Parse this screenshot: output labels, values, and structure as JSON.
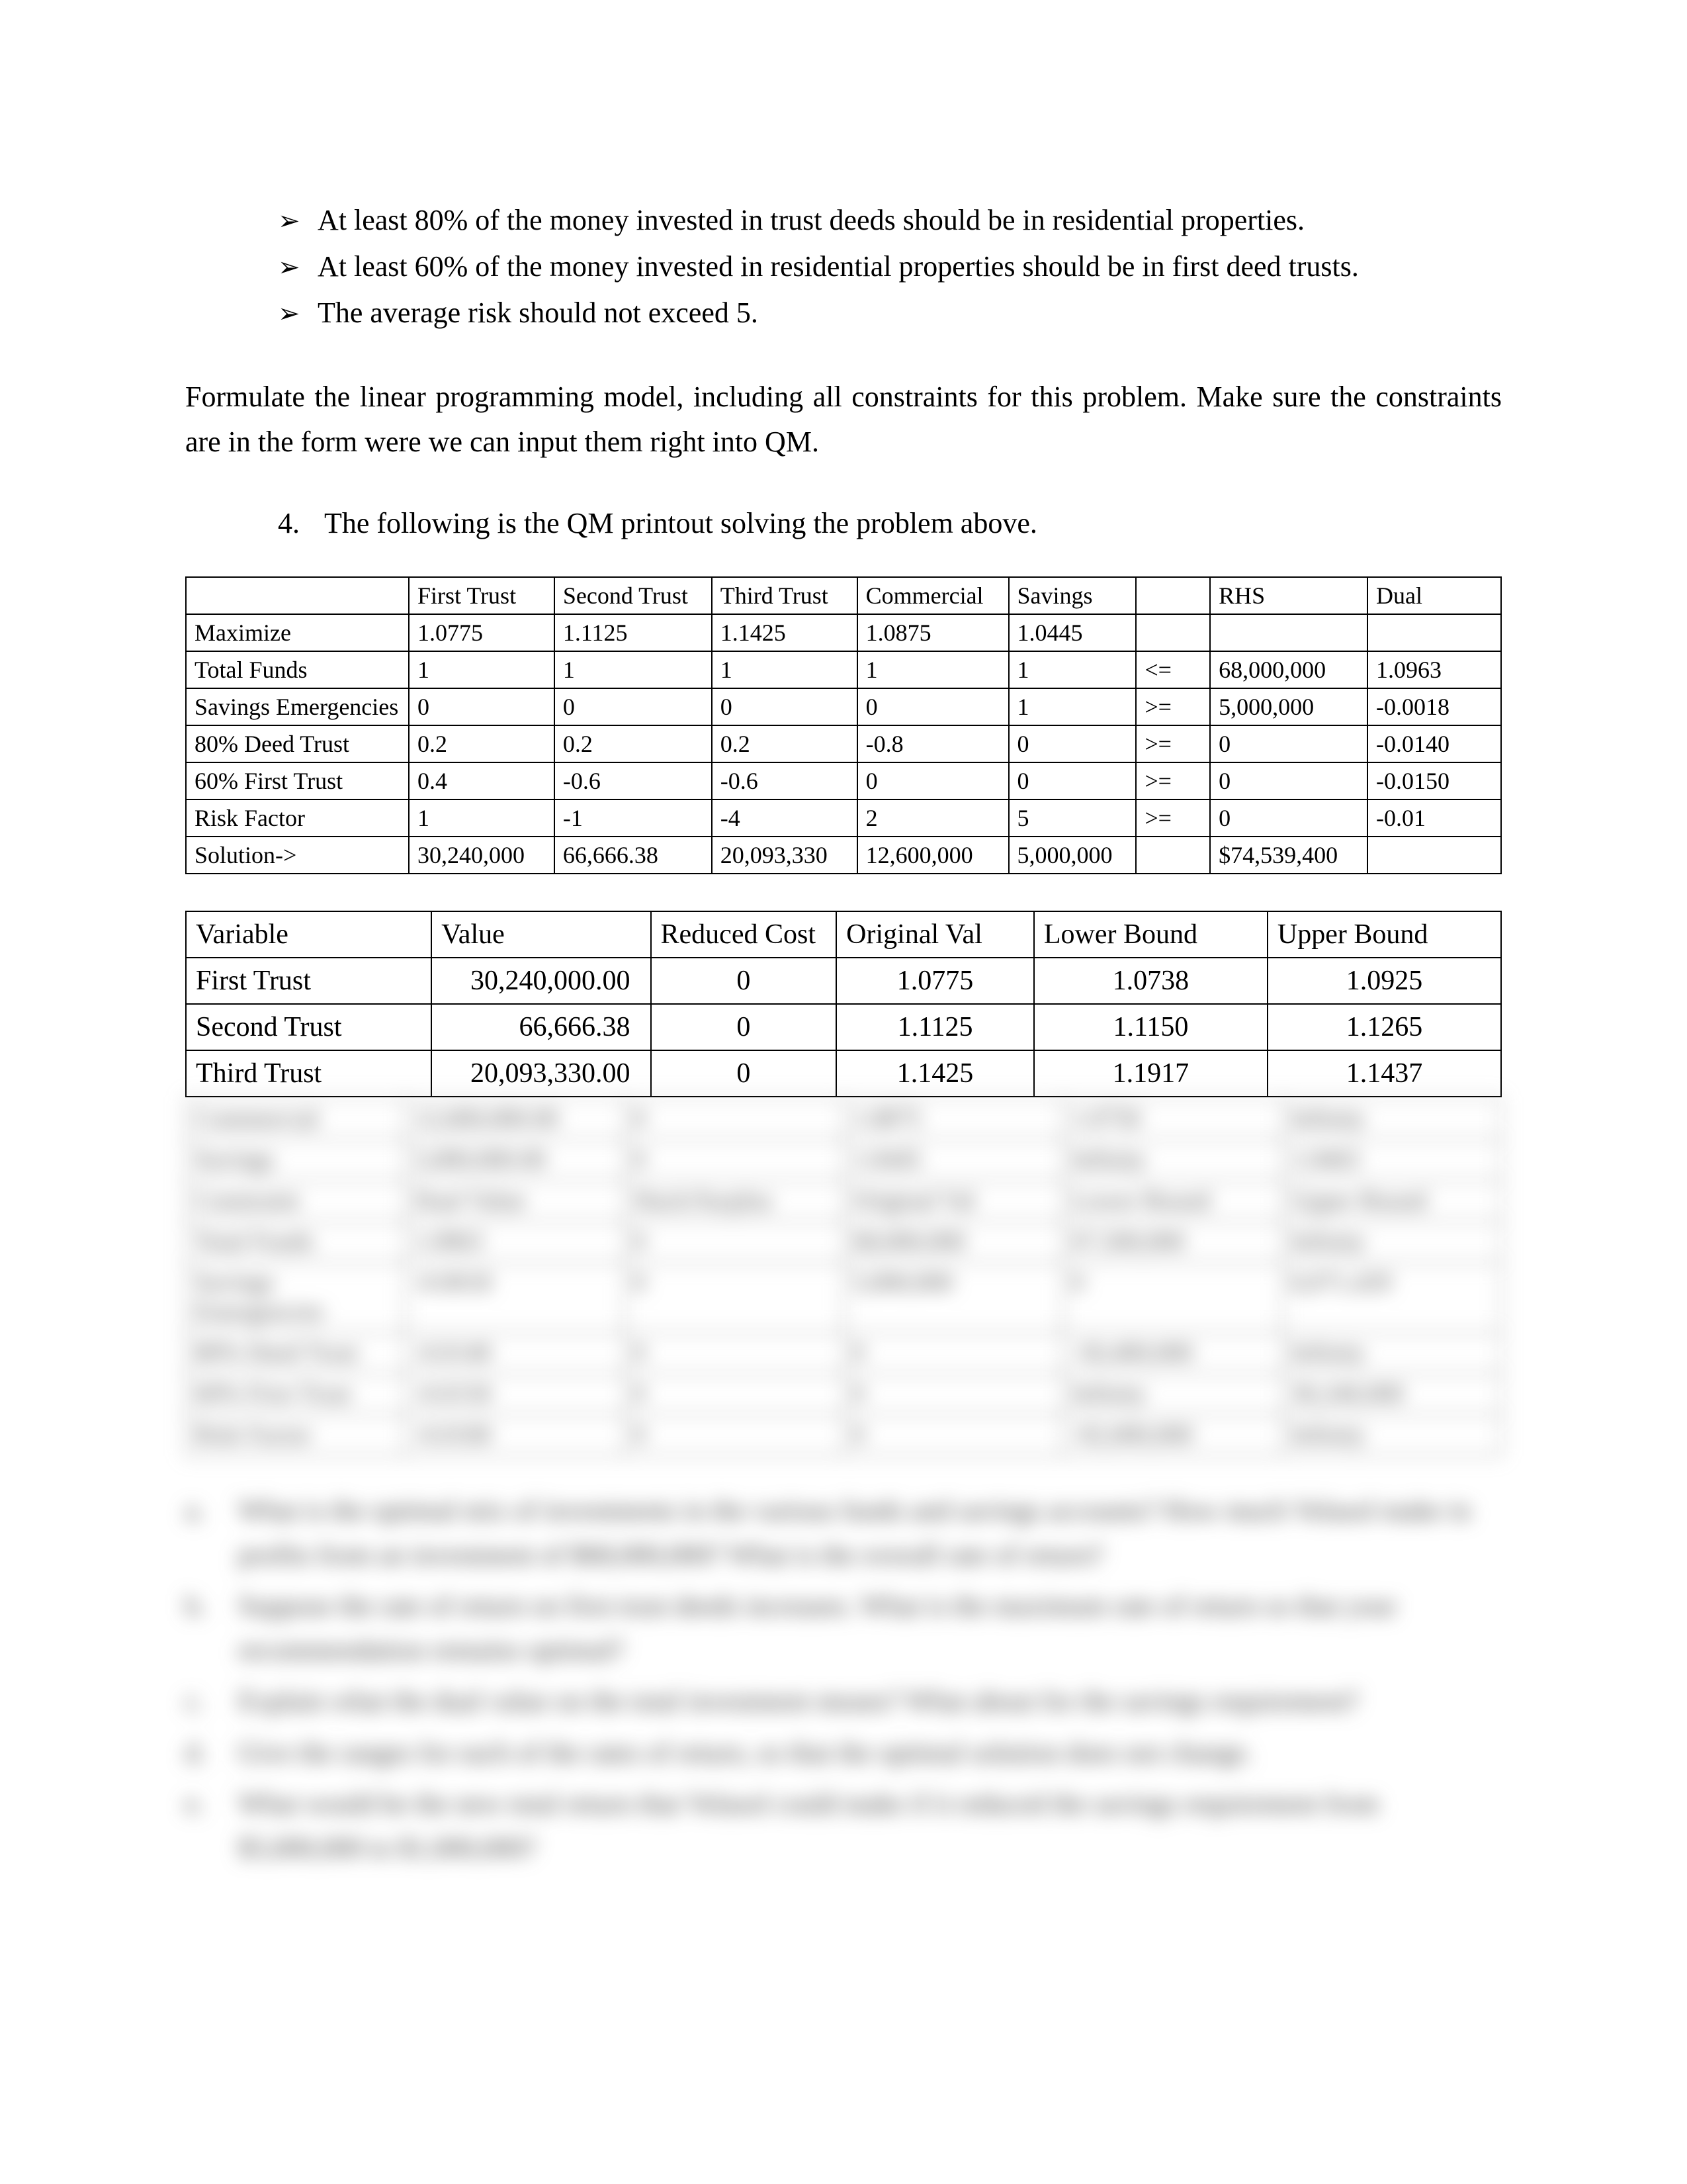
{
  "bullets": {
    "glyph": "➢",
    "items": [
      "At least 80% of the money invested in trust deeds should be in residential properties.",
      "At least 60% of the money invested in residential properties should be in first deed trusts.",
      "The average risk should not exceed 5."
    ]
  },
  "paragraph": "Formulate the linear programming model, including all constraints for this problem.  Make sure the constraints are in the form were we can input them right into QM.",
  "numbered": {
    "label": "4.",
    "text": "The following is the QM printout solving the problem above."
  },
  "table1": {
    "headers": [
      "",
      "First Trust",
      "Second Trust",
      "Third Trust",
      "Commercial",
      "Savings",
      "",
      "RHS",
      "Dual"
    ],
    "rows": [
      [
        "Maximize",
        "1.0775",
        "1.1125",
        "1.1425",
        "1.0875",
        "1.0445",
        "",
        "",
        ""
      ],
      [
        "Total Funds",
        "1",
        "1",
        "1",
        "1",
        "1",
        "<=",
        "68,000,000",
        "1.0963"
      ],
      [
        "Savings Emergencies",
        "0",
        "0",
        "0",
        "0",
        "1",
        ">=",
        "5,000,000",
        "-0.0018"
      ],
      [
        "80% Deed Trust",
        "0.2",
        "0.2",
        "0.2",
        "-0.8",
        "0",
        ">=",
        "0",
        "-0.0140"
      ],
      [
        "60% First Trust",
        "0.4",
        "-0.6",
        "-0.6",
        "0",
        "0",
        ">=",
        "0",
        "-0.0150"
      ],
      [
        "Risk Factor",
        "1",
        "-1",
        "-4",
        "2",
        "5",
        ">=",
        "0",
        "-0.01"
      ],
      [
        "Solution->",
        "30,240,000",
        "66,666.38",
        "20,093,330",
        "12,600,000",
        "5,000,000",
        "",
        "$74,539,400",
        ""
      ]
    ]
  },
  "table2": {
    "headers": [
      "Variable",
      "Value",
      "Reduced Cost",
      "Original Val",
      "Lower Bound",
      "Upper Bound"
    ],
    "rows": [
      [
        "First Trust",
        "30,240,000.00",
        "0",
        "1.0775",
        "1.0738",
        "1.0925"
      ],
      [
        "Second Trust",
        "66,666.38",
        "0",
        "1.1125",
        "1.1150",
        "1.1265"
      ],
      [
        "Third Trust",
        "20,093,330.00",
        "0",
        "1.1425",
        "1.1917",
        "1.1437"
      ]
    ]
  },
  "blurred_table": {
    "rows": [
      [
        "Commercial",
        "12,600,000.00",
        "0",
        "1.0875",
        "1.0750",
        "Infinity"
      ],
      [
        "Savings",
        "5,000,000.00",
        "0",
        "1.0445",
        "Infinity",
        "1.0463"
      ],
      [
        "Constraint",
        "Dual Value",
        "Slack/Surplus",
        "Original Val",
        "Lower Bound",
        "Upper Bound"
      ],
      [
        "Total Funds",
        "1.0963",
        "0",
        "68,000,000",
        "67,500,000",
        "Infinity"
      ],
      [
        "Savings Emergencies",
        "-0.0018",
        "0",
        "5,000,000",
        "0",
        "6,071,429"
      ],
      [
        "80% Deed Trust",
        "-0.0140",
        "0",
        "0",
        "-50,400,000",
        "Infinity"
      ],
      [
        "60% First Trust",
        "-0.0150",
        "0",
        "0",
        "Infinity",
        "30,240,000"
      ],
      [
        "Risk Factor",
        "-0.0100",
        "0",
        "0",
        "-92,000,000",
        "Infinity"
      ]
    ]
  },
  "blurred_questions": [
    {
      "label": "a.",
      "text": "What is the optimal mix of investments in the various funds and savings accounts?  How much Velasol make in profits from an investment of $68,000,000?  What is the overall rate of return?"
    },
    {
      "label": "b.",
      "text": "Suppose the rate of return on first trust deeds increases.  What is the maximum rate of return so that your recommendation remains optimal?"
    },
    {
      "label": "c.",
      "text": "Explain what the dual value on the total investment means?  What about for the savings requirement?"
    },
    {
      "label": "d.",
      "text": "Give the ranges for each of the rates of return, so that the optimal solution does not change."
    },
    {
      "label": "e.",
      "text": "What would be the new total return that Velasol could make if it reduced the savings requirement from $5,000,000 to $1,000,000?"
    }
  ]
}
